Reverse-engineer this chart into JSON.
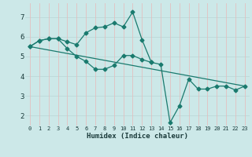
{
  "line1_x": [
    0,
    1,
    2,
    3,
    4,
    5,
    6,
    7,
    8,
    9,
    10,
    11,
    12,
    13,
    14,
    15,
    16
  ],
  "line1_y": [
    5.5,
    5.8,
    5.9,
    5.9,
    5.75,
    5.6,
    6.2,
    6.45,
    6.5,
    6.7,
    6.5,
    7.25,
    5.85,
    4.7,
    null,
    null,
    null
  ],
  "line2_x": [
    0,
    1,
    2,
    3,
    4,
    5,
    6,
    7,
    8,
    9,
    10,
    11,
    12,
    13,
    14,
    15,
    16,
    17,
    18,
    19,
    20,
    21,
    22,
    23
  ],
  "line2_y": [
    5.5,
    5.8,
    5.9,
    5.9,
    5.4,
    5.0,
    4.75,
    4.35,
    4.35,
    4.55,
    5.05,
    5.05,
    4.85,
    4.7,
    4.6,
    1.65,
    2.5,
    3.85,
    3.35,
    3.35,
    3.5,
    3.5,
    3.3,
    3.5
  ],
  "line3_x": [
    0,
    23
  ],
  "line3_y": [
    5.5,
    3.5
  ],
  "color": "#1a7a6e",
  "bg_color": "#cce8e8",
  "grid_color_h": "#b8d4d4",
  "grid_color_v": "#e8b8b8",
  "xlabel": "Humidex (Indice chaleur)",
  "xlim": [
    -0.5,
    23.5
  ],
  "ylim": [
    1.5,
    7.7
  ],
  "yticks": [
    2,
    3,
    4,
    5,
    6,
    7
  ],
  "xticks": [
    0,
    1,
    2,
    3,
    4,
    5,
    6,
    7,
    8,
    9,
    10,
    11,
    12,
    13,
    14,
    15,
    16,
    17,
    18,
    19,
    20,
    21,
    22,
    23
  ]
}
